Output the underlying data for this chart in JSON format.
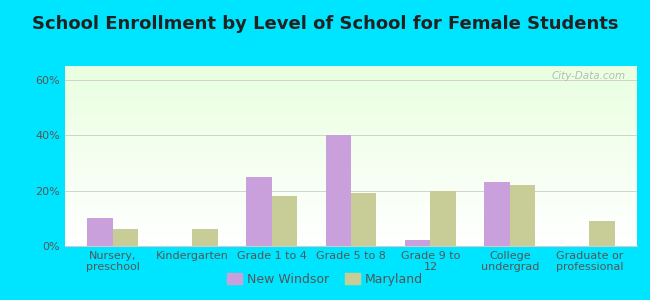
{
  "title": "School Enrollment by Level of School for Female Students",
  "categories": [
    "Nursery,\npreschool",
    "Kindergarten",
    "Grade 1 to 4",
    "Grade 5 to 8",
    "Grade 9 to\n12",
    "College\nundergrad",
    "Graduate or\nprofessional"
  ],
  "new_windsor": [
    10,
    0,
    25,
    40,
    2,
    23,
    0
  ],
  "maryland": [
    6,
    6,
    18,
    19,
    20,
    22,
    9
  ],
  "bar_color_nw": "#c9a0dc",
  "bar_color_md": "#c8cc96",
  "background_color": "#00e5ff",
  "ylim": [
    0,
    65
  ],
  "yticks": [
    0,
    20,
    40,
    60
  ],
  "ytick_labels": [
    "0%",
    "20%",
    "40%",
    "60%"
  ],
  "legend_nw": "New Windsor",
  "legend_md": "Maryland",
  "title_fontsize": 13,
  "tick_fontsize": 8,
  "legend_fontsize": 9,
  "watermark": "City-Data.com"
}
